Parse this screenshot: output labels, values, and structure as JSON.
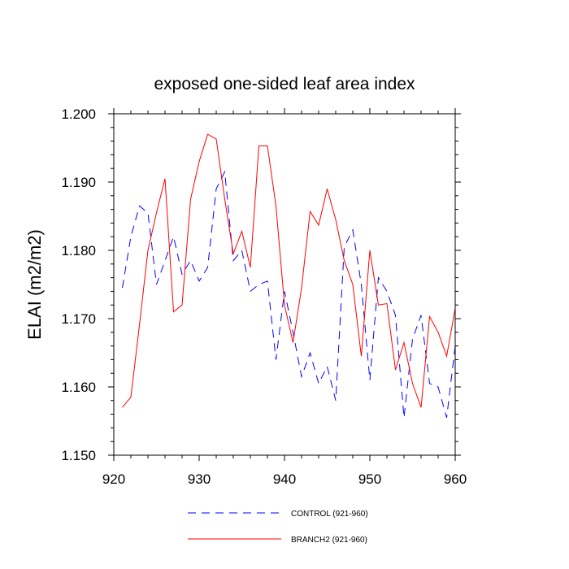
{
  "chart_data": {
    "type": "line",
    "title": "exposed one-sided leaf area index",
    "xlabel": "",
    "ylabel": "ELAI  (m2/m2)",
    "xlim": [
      920,
      960
    ],
    "ylim": [
      1.15,
      1.2
    ],
    "x_ticks": [
      920,
      930,
      940,
      950,
      960
    ],
    "x_tick_labels": [
      "920",
      "930",
      "940",
      "950",
      "960"
    ],
    "y_ticks": [
      1.15,
      1.16,
      1.17,
      1.18,
      1.19,
      1.2
    ],
    "y_tick_labels": [
      "1.150",
      "1.160",
      "1.170",
      "1.180",
      "1.190",
      "1.200"
    ],
    "x": [
      921,
      922,
      923,
      924,
      925,
      926,
      927,
      928,
      929,
      930,
      931,
      932,
      933,
      934,
      935,
      936,
      937,
      938,
      939,
      940,
      941,
      942,
      943,
      944,
      945,
      946,
      947,
      948,
      949,
      950,
      951,
      952,
      953,
      954,
      955,
      956,
      957,
      958,
      959,
      960
    ],
    "series": [
      {
        "name": "CONTROL (921-960)",
        "color": "#0000ff",
        "dash": "dashed",
        "values": [
          1.1745,
          1.182,
          1.1865,
          1.1855,
          1.175,
          1.1785,
          1.182,
          1.1765,
          1.1785,
          1.1755,
          1.1775,
          1.189,
          1.1915,
          1.1785,
          1.18,
          1.174,
          1.175,
          1.1755,
          1.164,
          1.174,
          1.168,
          1.1615,
          1.165,
          1.1605,
          1.163,
          1.158,
          1.1805,
          1.183,
          1.175,
          1.161,
          1.176,
          1.174,
          1.1705,
          1.1555,
          1.167,
          1.1705,
          1.1605,
          1.16,
          1.1555,
          1.166
        ]
      },
      {
        "name": "BRANCH2 (921-960)",
        "color": "#ff0000",
        "dash": "solid",
        "values": [
          1.157,
          1.1585,
          1.169,
          1.18,
          1.1855,
          1.1905,
          1.171,
          1.172,
          1.1875,
          1.193,
          1.197,
          1.1963,
          1.1875,
          1.1795,
          1.1828,
          1.1775,
          1.1953,
          1.1953,
          1.1865,
          1.172,
          1.1665,
          1.1745,
          1.1857,
          1.1837,
          1.189,
          1.1845,
          1.1785,
          1.175,
          1.1645,
          1.18,
          1.172,
          1.1722,
          1.1625,
          1.1665,
          1.1605,
          1.157,
          1.1703,
          1.168,
          1.1645,
          1.1715
        ]
      }
    ],
    "legend_position": "bottom"
  }
}
